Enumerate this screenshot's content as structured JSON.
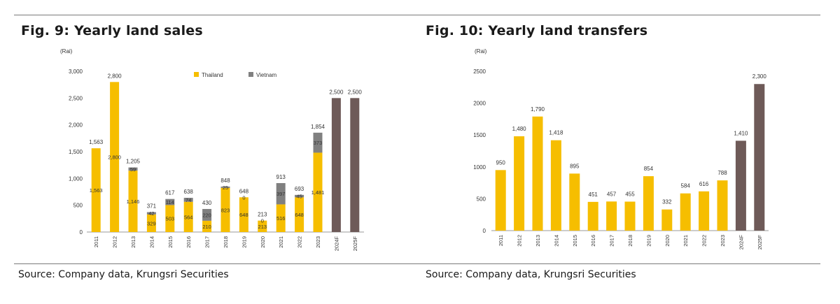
{
  "figures": [
    {
      "title": "Fig. 9: Yearly land sales",
      "source": "Source: Company data, Krungsri Securities"
    },
    {
      "title": "Fig. 10: Yearly land transfers",
      "source": "Source: Company data, Krungsri Securities"
    }
  ],
  "colors": {
    "thailand": "#F6BE00",
    "vietnam": "#808080",
    "forecast": "#6E5A58",
    "axis": "#999999"
  },
  "chart_data": [
    {
      "type": "bar",
      "stacked": true,
      "title": "Fig. 9: Yearly land sales",
      "ylabel": "(Rai)",
      "ylim": [
        0,
        3000
      ],
      "yticks": [
        0,
        500,
        1000,
        1500,
        2000,
        2500,
        3000
      ],
      "ytick_labels": [
        "0",
        "500",
        "1,000",
        "1,500",
        "2,000",
        "2,500",
        "3,000"
      ],
      "categories": [
        "2011",
        "2012",
        "2013",
        "2014",
        "2015",
        "2016",
        "2017",
        "2018",
        "2019",
        "2020",
        "2021",
        "2022",
        "2023",
        "2024F",
        "2025F"
      ],
      "legend": [
        "Thailand",
        "Vietnam"
      ],
      "legend_position": "top",
      "series": [
        {
          "name": "Thailand",
          "values": [
            1563,
            2800,
            1146,
            329,
            503,
            564,
            210,
            823,
            648,
            213,
            516,
            648,
            1481,
            null,
            null
          ],
          "labels": [
            "1,563",
            "2,800",
            "1,146",
            "329",
            "503",
            "564",
            "210",
            "823",
            "648",
            "213",
            "516",
            "648",
            "1,481",
            "",
            ""
          ]
        },
        {
          "name": "Vietnam",
          "values": [
            0,
            0,
            59,
            42,
            114,
            74,
            220,
            25,
            0,
            0,
            397,
            45,
            373,
            null,
            null
          ],
          "labels": [
            "",
            "",
            "59",
            "42",
            "114",
            "74",
            "220",
            "25",
            "0",
            "0",
            "397",
            "45",
            "373",
            "",
            ""
          ]
        },
        {
          "name": "Forecast",
          "values": [
            null,
            null,
            null,
            null,
            null,
            null,
            null,
            null,
            null,
            null,
            null,
            null,
            null,
            2500,
            2500
          ]
        }
      ],
      "totals": [
        1563,
        2800,
        1205,
        371,
        617,
        638,
        430,
        848,
        648,
        213,
        913,
        693,
        1854,
        2500,
        2500
      ],
      "total_labels": [
        "1,563",
        "2,800",
        "1,205",
        "371",
        "617",
        "638",
        "430",
        "848",
        "648",
        "213",
        "913",
        "693",
        "1,854",
        "2,500",
        "2,500"
      ]
    },
    {
      "type": "bar",
      "stacked": false,
      "title": "Fig. 10: Yearly land transfers",
      "ylabel": "(Rai)",
      "ylim": [
        0,
        2500
      ],
      "yticks": [
        0,
        500,
        1000,
        1500,
        2000,
        2500
      ],
      "ytick_labels": [
        "0",
        "500",
        "1000",
        "1500",
        "2000",
        "2500"
      ],
      "categories": [
        "2011",
        "2012",
        "2013",
        "2014",
        "2015",
        "2016",
        "2017",
        "2018",
        "2019",
        "2020",
        "2021",
        "2022",
        "2023",
        "2024F",
        "2025F"
      ],
      "values": [
        950,
        1480,
        1790,
        1418,
        895,
        451,
        457,
        455,
        854,
        332,
        584,
        616,
        788,
        1410,
        2300
      ],
      "labels": [
        "950",
        "1,480",
        "1,790",
        "1,418",
        "895",
        "451",
        "457",
        "455",
        "854",
        "332",
        "584",
        "616",
        "788",
        "1,410",
        "2,300"
      ],
      "forecast_categories": [
        "2024F",
        "2025F"
      ]
    }
  ]
}
